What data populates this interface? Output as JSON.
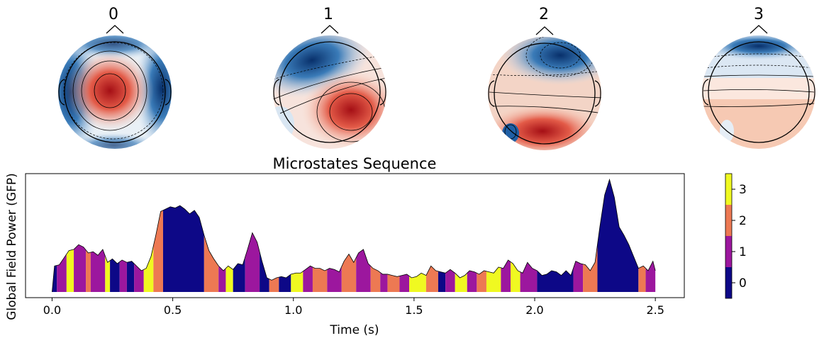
{
  "topomaps": [
    {
      "label": "0"
    },
    {
      "label": "1"
    },
    {
      "label": "2"
    },
    {
      "label": "3"
    }
  ],
  "chart_data": {
    "type": "area",
    "title": "Microstates Sequence",
    "xlabel": "Time (s)",
    "ylabel": "Global Field Power (GFP)",
    "xlim": [
      -0.11,
      2.62
    ],
    "ylim": [
      0,
      1.0
    ],
    "xticks": [
      0.0,
      0.5,
      1.0,
      1.5,
      2.0,
      2.5
    ],
    "xtick_labels": [
      "0.0",
      "0.5",
      "1.0",
      "1.5",
      "2.0",
      "2.5"
    ],
    "colorbar": {
      "ticks": [
        "0",
        "1",
        "2",
        "3"
      ],
      "colors": [
        "#0d0887",
        "#9c179e",
        "#ed7953",
        "#f0f921"
      ]
    },
    "gfp": [
      [
        0.0,
        0.0
      ],
      [
        0.01,
        0.22
      ],
      [
        0.03,
        0.23
      ],
      [
        0.05,
        0.29
      ],
      [
        0.07,
        0.35
      ],
      [
        0.09,
        0.36
      ],
      [
        0.11,
        0.4
      ],
      [
        0.13,
        0.38
      ],
      [
        0.15,
        0.33
      ],
      [
        0.17,
        0.34
      ],
      [
        0.19,
        0.31
      ],
      [
        0.21,
        0.36
      ],
      [
        0.23,
        0.25
      ],
      [
        0.25,
        0.28
      ],
      [
        0.27,
        0.24
      ],
      [
        0.29,
        0.27
      ],
      [
        0.31,
        0.25
      ],
      [
        0.33,
        0.26
      ],
      [
        0.35,
        0.22
      ],
      [
        0.37,
        0.18
      ],
      [
        0.39,
        0.2
      ],
      [
        0.41,
        0.3
      ],
      [
        0.43,
        0.48
      ],
      [
        0.45,
        0.68
      ],
      [
        0.47,
        0.7
      ],
      [
        0.49,
        0.72
      ],
      [
        0.51,
        0.71
      ],
      [
        0.53,
        0.73
      ],
      [
        0.55,
        0.7
      ],
      [
        0.57,
        0.66
      ],
      [
        0.59,
        0.69
      ],
      [
        0.61,
        0.63
      ],
      [
        0.63,
        0.48
      ],
      [
        0.65,
        0.35
      ],
      [
        0.67,
        0.28
      ],
      [
        0.69,
        0.22
      ],
      [
        0.71,
        0.18
      ],
      [
        0.73,
        0.22
      ],
      [
        0.75,
        0.19
      ],
      [
        0.77,
        0.24
      ],
      [
        0.79,
        0.23
      ],
      [
        0.81,
        0.36
      ],
      [
        0.83,
        0.5
      ],
      [
        0.85,
        0.42
      ],
      [
        0.87,
        0.26
      ],
      [
        0.89,
        0.12
      ],
      [
        0.91,
        0.1
      ],
      [
        0.93,
        0.12
      ],
      [
        0.95,
        0.13
      ],
      [
        0.97,
        0.12
      ],
      [
        0.99,
        0.15
      ],
      [
        1.01,
        0.16
      ],
      [
        1.03,
        0.16
      ],
      [
        1.05,
        0.19
      ],
      [
        1.07,
        0.22
      ],
      [
        1.09,
        0.2
      ],
      [
        1.11,
        0.2
      ],
      [
        1.13,
        0.18
      ],
      [
        1.15,
        0.2
      ],
      [
        1.17,
        0.19
      ],
      [
        1.19,
        0.17
      ],
      [
        1.21,
        0.26
      ],
      [
        1.23,
        0.32
      ],
      [
        1.25,
        0.25
      ],
      [
        1.27,
        0.33
      ],
      [
        1.29,
        0.36
      ],
      [
        1.31,
        0.24
      ],
      [
        1.33,
        0.2
      ],
      [
        1.35,
        0.18
      ],
      [
        1.37,
        0.15
      ],
      [
        1.39,
        0.15
      ],
      [
        1.41,
        0.14
      ],
      [
        1.43,
        0.13
      ],
      [
        1.45,
        0.14
      ],
      [
        1.47,
        0.15
      ],
      [
        1.49,
        0.12
      ],
      [
        1.51,
        0.13
      ],
      [
        1.53,
        0.16
      ],
      [
        1.55,
        0.14
      ],
      [
        1.57,
        0.22
      ],
      [
        1.59,
        0.18
      ],
      [
        1.61,
        0.17
      ],
      [
        1.63,
        0.16
      ],
      [
        1.65,
        0.19
      ],
      [
        1.67,
        0.16
      ],
      [
        1.69,
        0.12
      ],
      [
        1.71,
        0.14
      ],
      [
        1.73,
        0.18
      ],
      [
        1.75,
        0.17
      ],
      [
        1.77,
        0.15
      ],
      [
        1.79,
        0.18
      ],
      [
        1.81,
        0.17
      ],
      [
        1.83,
        0.16
      ],
      [
        1.85,
        0.21
      ],
      [
        1.87,
        0.2
      ],
      [
        1.89,
        0.27
      ],
      [
        1.91,
        0.24
      ],
      [
        1.93,
        0.18
      ],
      [
        1.95,
        0.16
      ],
      [
        1.97,
        0.25
      ],
      [
        1.99,
        0.2
      ],
      [
        2.01,
        0.18
      ],
      [
        2.03,
        0.14
      ],
      [
        2.05,
        0.15
      ],
      [
        2.07,
        0.18
      ],
      [
        2.09,
        0.17
      ],
      [
        2.11,
        0.14
      ],
      [
        2.13,
        0.18
      ],
      [
        2.15,
        0.14
      ],
      [
        2.17,
        0.26
      ],
      [
        2.19,
        0.24
      ],
      [
        2.21,
        0.23
      ],
      [
        2.23,
        0.18
      ],
      [
        2.25,
        0.25
      ],
      [
        2.27,
        0.55
      ],
      [
        2.29,
        0.82
      ],
      [
        2.31,
        0.95
      ],
      [
        2.33,
        0.8
      ],
      [
        2.35,
        0.55
      ],
      [
        2.37,
        0.48
      ],
      [
        2.39,
        0.4
      ],
      [
        2.41,
        0.3
      ],
      [
        2.43,
        0.2
      ],
      [
        2.45,
        0.22
      ],
      [
        2.47,
        0.18
      ],
      [
        2.49,
        0.26
      ],
      [
        2.5,
        0.18
      ]
    ],
    "segments": [
      {
        "t0": 0.0,
        "t1": 0.02,
        "state": 0
      },
      {
        "t0": 0.02,
        "t1": 0.06,
        "state": 1
      },
      {
        "t0": 0.06,
        "t1": 0.09,
        "state": 3
      },
      {
        "t0": 0.09,
        "t1": 0.14,
        "state": 1
      },
      {
        "t0": 0.14,
        "t1": 0.16,
        "state": 2
      },
      {
        "t0": 0.16,
        "t1": 0.22,
        "state": 1
      },
      {
        "t0": 0.22,
        "t1": 0.24,
        "state": 3
      },
      {
        "t0": 0.24,
        "t1": 0.28,
        "state": 0
      },
      {
        "t0": 0.28,
        "t1": 0.31,
        "state": 1
      },
      {
        "t0": 0.31,
        "t1": 0.34,
        "state": 0
      },
      {
        "t0": 0.34,
        "t1": 0.38,
        "state": 1
      },
      {
        "t0": 0.38,
        "t1": 0.42,
        "state": 3
      },
      {
        "t0": 0.42,
        "t1": 0.46,
        "state": 2
      },
      {
        "t0": 0.46,
        "t1": 0.63,
        "state": 0
      },
      {
        "t0": 0.63,
        "t1": 0.69,
        "state": 2
      },
      {
        "t0": 0.69,
        "t1": 0.72,
        "state": 1
      },
      {
        "t0": 0.72,
        "t1": 0.75,
        "state": 3
      },
      {
        "t0": 0.75,
        "t1": 0.8,
        "state": 0
      },
      {
        "t0": 0.8,
        "t1": 0.86,
        "state": 1
      },
      {
        "t0": 0.86,
        "t1": 0.9,
        "state": 0
      },
      {
        "t0": 0.9,
        "t1": 0.94,
        "state": 2
      },
      {
        "t0": 0.94,
        "t1": 0.99,
        "state": 0
      },
      {
        "t0": 0.99,
        "t1": 1.04,
        "state": 3
      },
      {
        "t0": 1.04,
        "t1": 1.08,
        "state": 1
      },
      {
        "t0": 1.08,
        "t1": 1.14,
        "state": 2
      },
      {
        "t0": 1.14,
        "t1": 1.2,
        "state": 1
      },
      {
        "t0": 1.2,
        "t1": 1.26,
        "state": 2
      },
      {
        "t0": 1.26,
        "t1": 1.32,
        "state": 1
      },
      {
        "t0": 1.32,
        "t1": 1.36,
        "state": 2
      },
      {
        "t0": 1.36,
        "t1": 1.39,
        "state": 1
      },
      {
        "t0": 1.39,
        "t1": 1.44,
        "state": 2
      },
      {
        "t0": 1.44,
        "t1": 1.48,
        "state": 1
      },
      {
        "t0": 1.48,
        "t1": 1.55,
        "state": 3
      },
      {
        "t0": 1.55,
        "t1": 1.6,
        "state": 2
      },
      {
        "t0": 1.6,
        "t1": 1.63,
        "state": 0
      },
      {
        "t0": 1.63,
        "t1": 1.67,
        "state": 1
      },
      {
        "t0": 1.67,
        "t1": 1.72,
        "state": 3
      },
      {
        "t0": 1.72,
        "t1": 1.76,
        "state": 1
      },
      {
        "t0": 1.76,
        "t1": 1.8,
        "state": 2
      },
      {
        "t0": 1.8,
        "t1": 1.86,
        "state": 3
      },
      {
        "t0": 1.86,
        "t1": 1.9,
        "state": 1
      },
      {
        "t0": 1.9,
        "t1": 1.94,
        "state": 3
      },
      {
        "t0": 1.94,
        "t1": 2.01,
        "state": 1
      },
      {
        "t0": 2.01,
        "t1": 2.16,
        "state": 0
      },
      {
        "t0": 2.16,
        "t1": 2.2,
        "state": 1
      },
      {
        "t0": 2.2,
        "t1": 2.26,
        "state": 2
      },
      {
        "t0": 2.26,
        "t1": 2.43,
        "state": 0
      },
      {
        "t0": 2.43,
        "t1": 2.46,
        "state": 2
      },
      {
        "t0": 2.46,
        "t1": 2.5,
        "state": 1
      }
    ]
  }
}
